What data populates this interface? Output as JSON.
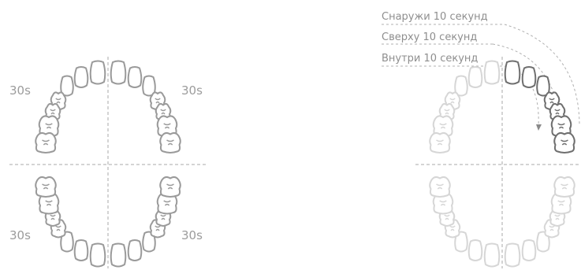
{
  "quadrant_labels": {
    "upper_left": "30s",
    "upper_right": "30s",
    "lower_left": "30s",
    "lower_right": "30s"
  },
  "instructions": [
    "Снаружи 10 секунд",
    "Сверху 10 секунд",
    "Внутри 10 секунд"
  ],
  "colors": {
    "tooth_outline": "#9a9a9a",
    "tooth_outline_faded": "#d6d6d6",
    "tooth_outline_active": "#6f6f6f",
    "guide_line": "#a8a8a8",
    "label_text": "#9c9c9c"
  }
}
